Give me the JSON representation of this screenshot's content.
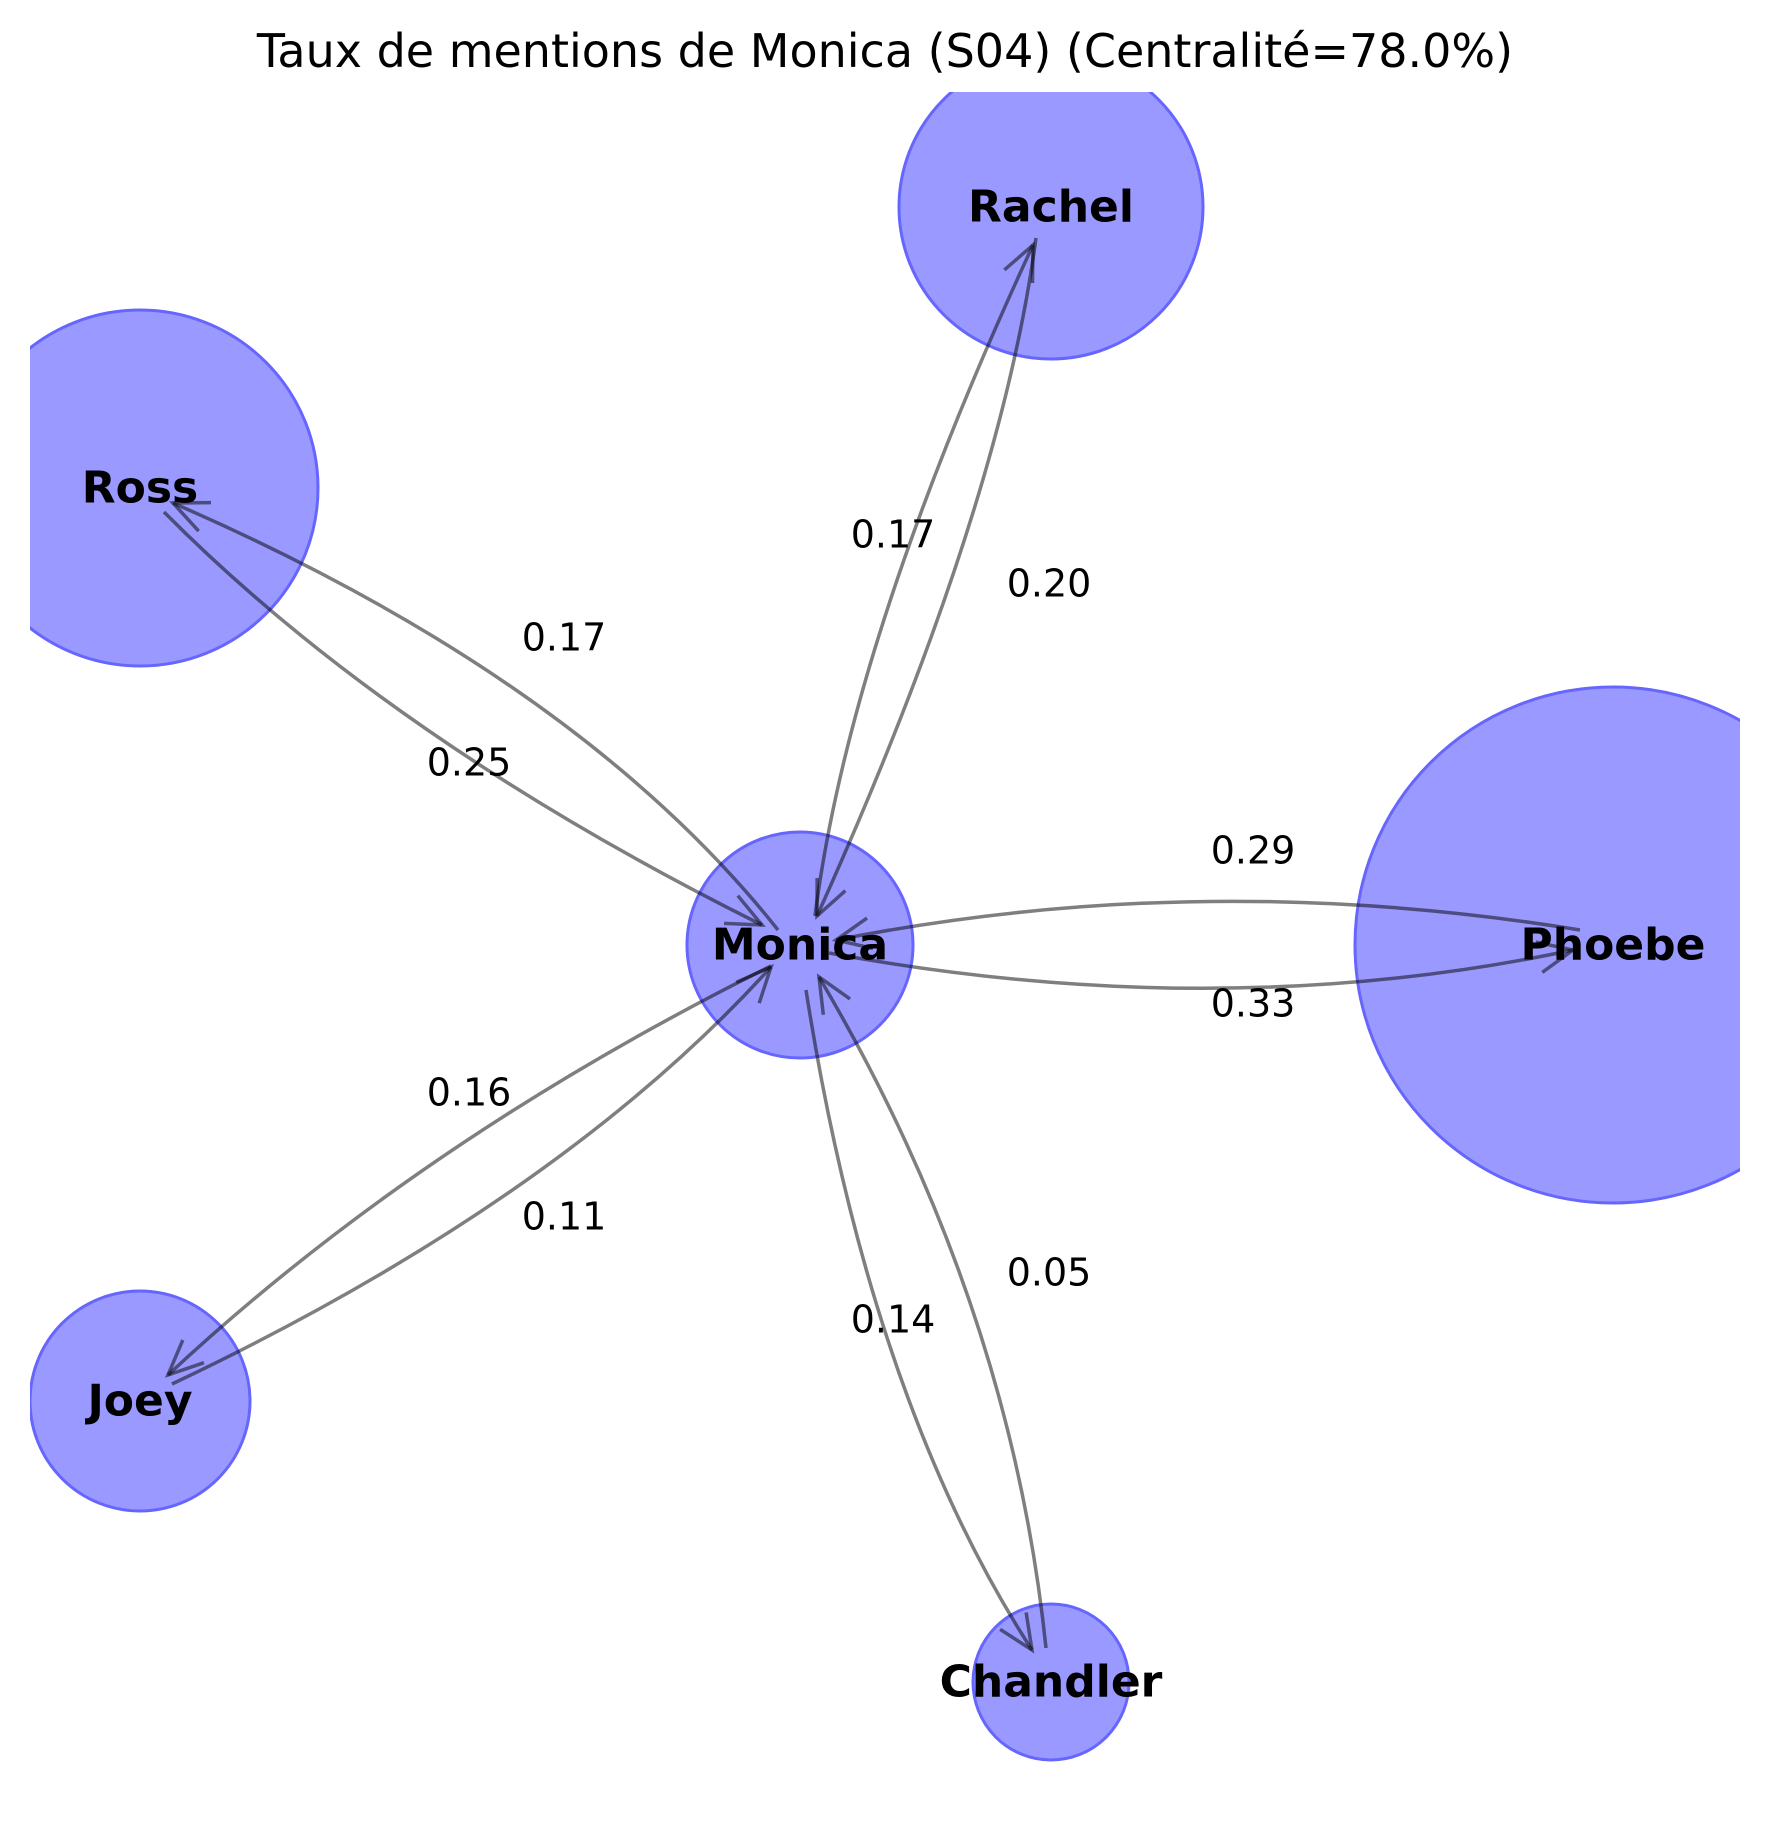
{
  "title": "Taux de mentions de Monica (S04) (Centralité=78.0%)",
  "colors": {
    "node_fill": "#9999ff",
    "node_stroke": "#6666ff",
    "edge": "#000000"
  },
  "nodes": [
    {
      "id": "monica",
      "label": "Monica"
    },
    {
      "id": "rachel",
      "label": "Rachel"
    },
    {
      "id": "ross",
      "label": "Ross"
    },
    {
      "id": "phoebe",
      "label": "Phoebe"
    },
    {
      "id": "joey",
      "label": "Joey"
    },
    {
      "id": "chandler",
      "label": "Chandler"
    }
  ],
  "edges": [
    {
      "from": "monica",
      "to": "rachel",
      "weight": "0.17"
    },
    {
      "from": "rachel",
      "to": "monica",
      "weight": "0.20"
    },
    {
      "from": "monica",
      "to": "ross",
      "weight": "0.17"
    },
    {
      "from": "ross",
      "to": "monica",
      "weight": "0.25"
    },
    {
      "from": "monica",
      "to": "phoebe",
      "weight": "0.33"
    },
    {
      "from": "phoebe",
      "to": "monica",
      "weight": "0.29"
    },
    {
      "from": "monica",
      "to": "joey",
      "weight": "0.16"
    },
    {
      "from": "joey",
      "to": "monica",
      "weight": "0.11"
    },
    {
      "from": "monica",
      "to": "chandler",
      "weight": "0.14"
    },
    {
      "from": "chandler",
      "to": "monica",
      "weight": "0.05"
    }
  ]
}
